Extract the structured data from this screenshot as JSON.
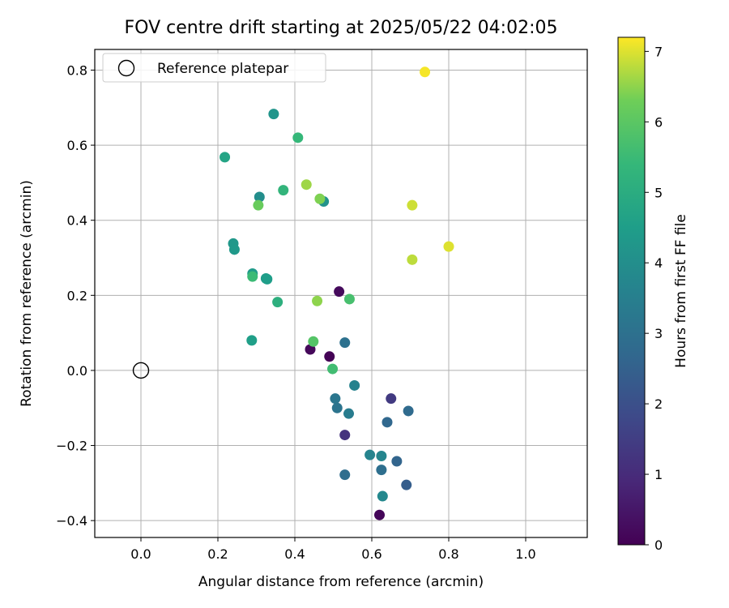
{
  "chart_data": {
    "type": "scatter",
    "title": "FOV centre drift starting at 2025/05/22 04:02:05",
    "xlabel": "Angular distance from reference (arcmin)",
    "ylabel": "Rotation from reference (arcmin)",
    "xlim": [
      -0.12,
      1.16
    ],
    "ylim": [
      -0.445,
      0.855
    ],
    "xticks": [
      0.0,
      0.2,
      0.4,
      0.6,
      0.8,
      1.0
    ],
    "xtick_labels": [
      "0.0",
      "0.2",
      "0.4",
      "0.6",
      "0.8",
      "1.0"
    ],
    "yticks": [
      -0.4,
      -0.2,
      0.0,
      0.2,
      0.4,
      0.6,
      0.8
    ],
    "ytick_labels": [
      "−0.4",
      "−0.2",
      "0.0",
      "0.2",
      "0.4",
      "0.6",
      "0.8"
    ],
    "grid": true,
    "legend": {
      "position": "top-left",
      "entries": [
        "Reference platepar"
      ]
    },
    "reference_point": {
      "x": 0.0,
      "y": 0.0,
      "label": "Reference platepar"
    },
    "colorbar": {
      "label": "Hours from first FF file",
      "colormap": "viridis",
      "range": [
        0,
        7.2
      ],
      "ticks": [
        0,
        1,
        2,
        3,
        4,
        5,
        6,
        7
      ],
      "tick_labels": [
        "0",
        "1",
        "2",
        "3",
        "4",
        "5",
        "6",
        "7"
      ]
    },
    "points": [
      {
        "x": 0.49,
        "y": 0.037,
        "c": 0.05
      },
      {
        "x": 0.62,
        "y": -0.385,
        "c": 0.1
      },
      {
        "x": 0.44,
        "y": 0.056,
        "c": 0.15
      },
      {
        "x": 0.515,
        "y": 0.21,
        "c": 0.2
      },
      {
        "x": 0.53,
        "y": -0.172,
        "c": 1.2
      },
      {
        "x": 0.65,
        "y": -0.075,
        "c": 1.4
      },
      {
        "x": 0.69,
        "y": -0.305,
        "c": 2.4
      },
      {
        "x": 0.665,
        "y": -0.242,
        "c": 2.6
      },
      {
        "x": 0.64,
        "y": -0.138,
        "c": 2.7
      },
      {
        "x": 0.695,
        "y": -0.108,
        "c": 2.8
      },
      {
        "x": 0.53,
        "y": -0.278,
        "c": 2.9
      },
      {
        "x": 0.625,
        "y": -0.265,
        "c": 2.95
      },
      {
        "x": 0.53,
        "y": 0.074,
        "c": 3.0
      },
      {
        "x": 0.51,
        "y": -0.1,
        "c": 3.1
      },
      {
        "x": 0.505,
        "y": -0.075,
        "c": 3.2
      },
      {
        "x": 0.54,
        "y": -0.115,
        "c": 3.4
      },
      {
        "x": 0.555,
        "y": -0.04,
        "c": 3.6
      },
      {
        "x": 0.595,
        "y": -0.225,
        "c": 3.65
      },
      {
        "x": 0.625,
        "y": -0.228,
        "c": 3.7
      },
      {
        "x": 0.628,
        "y": -0.335,
        "c": 3.8
      },
      {
        "x": 0.308,
        "y": 0.462,
        "c": 4.0
      },
      {
        "x": 0.475,
        "y": 0.45,
        "c": 4.1
      },
      {
        "x": 0.345,
        "y": 0.683,
        "c": 4.2
      },
      {
        "x": 0.24,
        "y": 0.338,
        "c": 4.3
      },
      {
        "x": 0.243,
        "y": 0.322,
        "c": 4.35
      },
      {
        "x": 0.29,
        "y": 0.258,
        "c": 4.4
      },
      {
        "x": 0.325,
        "y": 0.245,
        "c": 4.45
      },
      {
        "x": 0.328,
        "y": 0.243,
        "c": 4.5
      },
      {
        "x": 0.288,
        "y": 0.08,
        "c": 4.55
      },
      {
        "x": 0.218,
        "y": 0.568,
        "c": 4.7
      },
      {
        "x": 0.355,
        "y": 0.182,
        "c": 5.1
      },
      {
        "x": 0.37,
        "y": 0.48,
        "c": 5.3
      },
      {
        "x": 0.408,
        "y": 0.62,
        "c": 5.4
      },
      {
        "x": 0.29,
        "y": 0.25,
        "c": 5.5
      },
      {
        "x": 0.498,
        "y": 0.004,
        "c": 5.6
      },
      {
        "x": 0.542,
        "y": 0.19,
        "c": 5.7
      },
      {
        "x": 0.448,
        "y": 0.077,
        "c": 5.9
      },
      {
        "x": 0.305,
        "y": 0.44,
        "c": 6.2
      },
      {
        "x": 0.465,
        "y": 0.457,
        "c": 6.4
      },
      {
        "x": 0.458,
        "y": 0.185,
        "c": 6.5
      },
      {
        "x": 0.43,
        "y": 0.495,
        "c": 6.6
      },
      {
        "x": 0.705,
        "y": 0.295,
        "c": 6.8
      },
      {
        "x": 0.705,
        "y": 0.44,
        "c": 6.9
      },
      {
        "x": 0.8,
        "y": 0.33,
        "c": 7.0
      },
      {
        "x": 0.738,
        "y": 0.795,
        "c": 7.15
      }
    ]
  }
}
